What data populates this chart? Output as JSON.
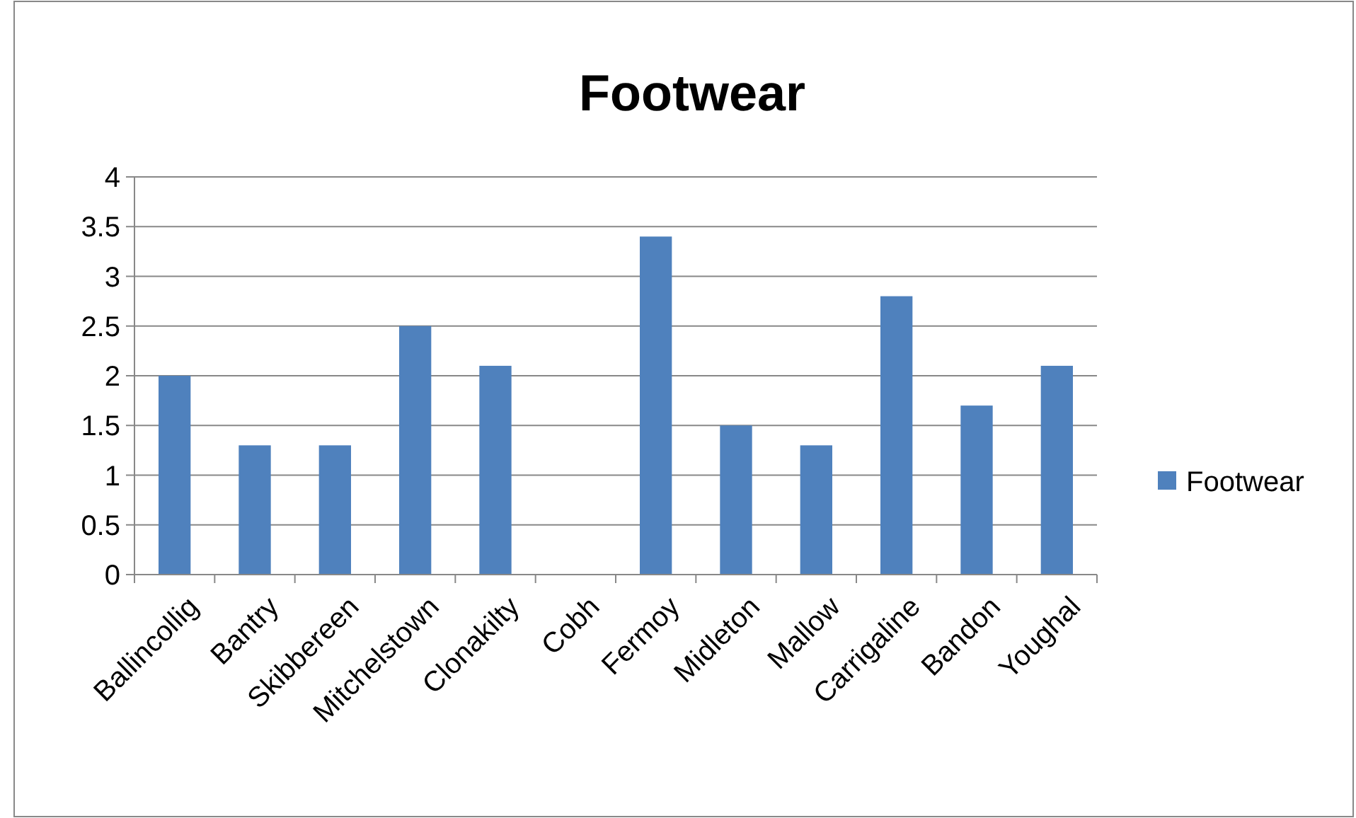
{
  "chart_data": {
    "type": "bar",
    "title": "Footwear",
    "categories": [
      "Ballincollig",
      "Bantry",
      "Skibbereen",
      "Mitchelstown",
      "Clonakilty",
      "Cobh",
      "Fermoy",
      "Midleton",
      "Mallow",
      "Carrigaline",
      "Bandon",
      "Youghal"
    ],
    "series": [
      {
        "name": "Footwear",
        "color": "#4f81bd",
        "values": [
          2,
          1.3,
          1.3,
          2.5,
          2.1,
          0,
          3.4,
          1.5,
          1.3,
          2.8,
          1.7,
          2.1
        ]
      }
    ],
    "ylim": [
      0,
      4
    ],
    "yticks": [
      0,
      {
        "value": 0.5,
        "label": "0.5"
      },
      1,
      {
        "value": 1.5,
        "label": "1.5"
      },
      2,
      {
        "value": 2.5,
        "label": "2.5"
      },
      3,
      {
        "value": 3.5,
        "label": "3.5"
      },
      4
    ],
    "grid": "y",
    "legend": "right"
  }
}
